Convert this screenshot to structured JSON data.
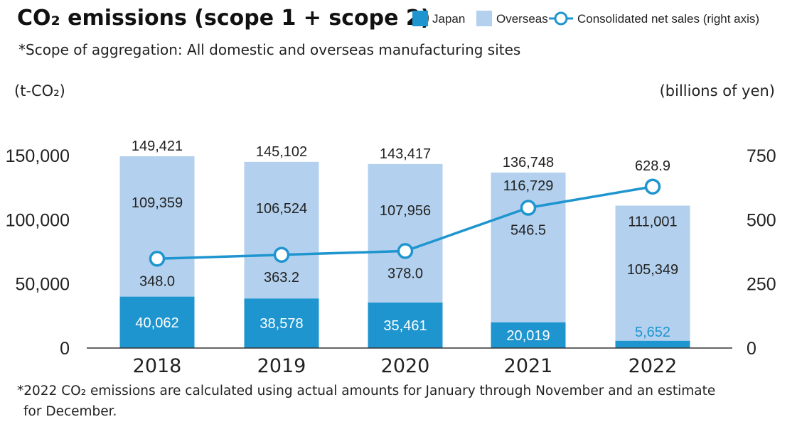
{
  "header": {
    "title": "CO₂ emissions (scope 1 + scope 2)",
    "subtitle": "*Scope of aggregation: All domestic and overseas manufacturing sites"
  },
  "footnote": {
    "line1": "*2022 CO₂ emissions are calculated using actual amounts for January through November and an estimate",
    "line2": "for December."
  },
  "colors": {
    "japan": "#1f95cf",
    "overseas": "#b3d1ee",
    "line": "#1f95cf",
    "axis": "#333333"
  },
  "chart_data": {
    "type": "bar",
    "stacked": true,
    "categories": [
      "2018",
      "2019",
      "2020",
      "2021",
      "2022"
    ],
    "series": [
      {
        "name": "Japan",
        "kind": "bar",
        "axis": "left",
        "values": [
          40062,
          38578,
          35461,
          20019,
          5652
        ],
        "labels": [
          "40,062",
          "38,578",
          "35,461",
          "20,019",
          "5,652"
        ]
      },
      {
        "name": "Overseas",
        "kind": "bar",
        "axis": "left",
        "values": [
          109359,
          106524,
          107956,
          116729,
          105349
        ],
        "labels": [
          "109,359",
          "106,524",
          "107,956",
          "116,729",
          "105,349"
        ]
      },
      {
        "name": "Consolidated net sales (right axis)",
        "kind": "line",
        "axis": "right",
        "values": [
          348.0,
          363.2,
          378.0,
          546.5,
          628.9
        ],
        "labels": [
          "348.0",
          "363.2",
          "378.0",
          "546.5",
          "628.9"
        ]
      }
    ],
    "totals": [
      149421,
      145102,
      143417,
      136748,
      111001
    ],
    "total_labels": [
      "149,421",
      "145,102",
      "143,417",
      "136,748",
      "111,001"
    ],
    "ylabel": "(t-CO₂)",
    "y2label": "(billions of yen)",
    "ylim": [
      0,
      150000
    ],
    "y2lim": [
      0,
      750
    ],
    "yticks": [
      0,
      50000,
      100000,
      150000
    ],
    "ytick_labels": [
      "0",
      "50,000",
      "100,000",
      "150,000"
    ],
    "y2ticks": [
      0,
      250,
      500,
      750
    ],
    "y2tick_labels": [
      "0",
      "250",
      "500",
      "750"
    ],
    "grid": false,
    "legend": "top-right"
  }
}
